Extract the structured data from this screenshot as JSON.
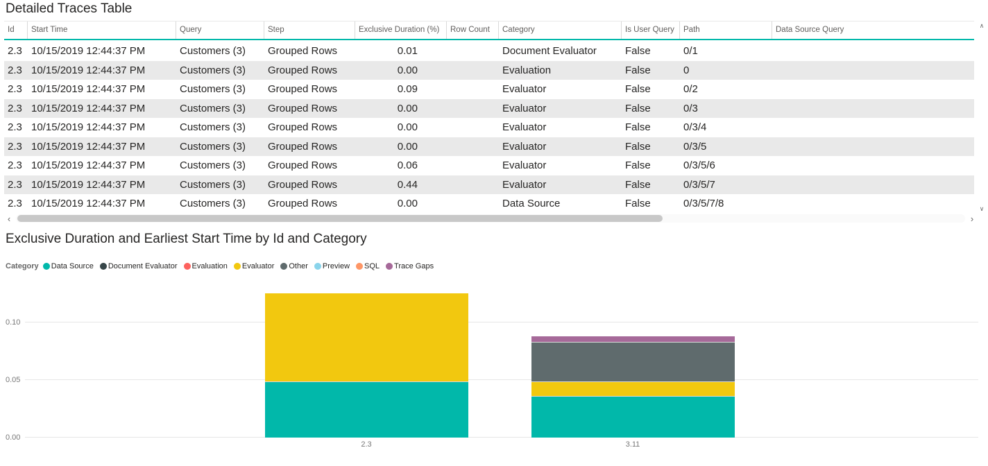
{
  "theme": {
    "accent": "#01B8AA",
    "alt_row_color": "#e9e9e9",
    "grid_line_color": "#e6e6e6",
    "text_primary": "#252423",
    "text_secondary": "#605E5C"
  },
  "table": {
    "title": "Detailed Traces Table",
    "columns": [
      "Id",
      "Start Time",
      "Query",
      "Step",
      "Exclusive Duration (%)",
      "Row Count",
      "Category",
      "Is User Query",
      "Path",
      "Data Source Query"
    ],
    "rows": [
      [
        "2.3",
        "10/15/2019 12:44:37 PM",
        "Customers (3)",
        "Grouped Rows",
        "0.01",
        "",
        "Document Evaluator",
        "False",
        "0/1",
        ""
      ],
      [
        "2.3",
        "10/15/2019 12:44:37 PM",
        "Customers (3)",
        "Grouped Rows",
        "0.00",
        "",
        "Evaluation",
        "False",
        "0",
        ""
      ],
      [
        "2.3",
        "10/15/2019 12:44:37 PM",
        "Customers (3)",
        "Grouped Rows",
        "0.09",
        "",
        "Evaluator",
        "False",
        "0/2",
        ""
      ],
      [
        "2.3",
        "10/15/2019 12:44:37 PM",
        "Customers (3)",
        "Grouped Rows",
        "0.00",
        "",
        "Evaluator",
        "False",
        "0/3",
        ""
      ],
      [
        "2.3",
        "10/15/2019 12:44:37 PM",
        "Customers (3)",
        "Grouped Rows",
        "0.00",
        "",
        "Evaluator",
        "False",
        "0/3/4",
        ""
      ],
      [
        "2.3",
        "10/15/2019 12:44:37 PM",
        "Customers (3)",
        "Grouped Rows",
        "0.00",
        "",
        "Evaluator",
        "False",
        "0/3/5",
        ""
      ],
      [
        "2.3",
        "10/15/2019 12:44:37 PM",
        "Customers (3)",
        "Grouped Rows",
        "0.06",
        "",
        "Evaluator",
        "False",
        "0/3/5/6",
        ""
      ],
      [
        "2.3",
        "10/15/2019 12:44:37 PM",
        "Customers (3)",
        "Grouped Rows",
        "0.44",
        "",
        "Evaluator",
        "False",
        "0/3/5/7",
        ""
      ],
      [
        "2.3",
        "10/15/2019 12:44:37 PM",
        "Customers (3)",
        "Grouped Rows",
        "0.00",
        "",
        "Data Source",
        "False",
        "0/3/5/7/8",
        ""
      ]
    ]
  },
  "scrollbar": {
    "left_arrow": "‹",
    "right_arrow": "›",
    "up_arrow": "∧",
    "down_arrow": "∨"
  },
  "chart": {
    "title": "Exclusive Duration and Earliest Start Time by Id and Category",
    "legend_label": "Category"
  },
  "chart_data": {
    "type": "bar",
    "stacked": true,
    "title": "Exclusive Duration and Earliest Start Time by Id and Category",
    "xlabel": "",
    "ylabel": "",
    "categories": [
      "2.3",
      "3.11"
    ],
    "series": [
      {
        "name": "Data Source",
        "color": "#01B8AA",
        "values": [
          0.049,
          0.036
        ]
      },
      {
        "name": "Document Evaluator",
        "color": "#374649",
        "values": [
          0,
          0
        ]
      },
      {
        "name": "Evaluation",
        "color": "#FD625E",
        "values": [
          0,
          0
        ]
      },
      {
        "name": "Evaluator",
        "color": "#F2C80F",
        "values": [
          0.076,
          0.013
        ]
      },
      {
        "name": "Other",
        "color": "#5F6B6D",
        "values": [
          0,
          0.034
        ]
      },
      {
        "name": "Preview",
        "color": "#8AD4EB",
        "values": [
          0,
          0
        ]
      },
      {
        "name": "SQL",
        "color": "#FE9666",
        "values": [
          0,
          0
        ]
      },
      {
        "name": "Trace Gaps",
        "color": "#A66999",
        "values": [
          0,
          0.005
        ]
      }
    ],
    "yticks": [
      0,
      0.05,
      0.1
    ],
    "ylim": [
      0,
      0.13
    ],
    "grid": true,
    "legend_position": "top-left"
  }
}
